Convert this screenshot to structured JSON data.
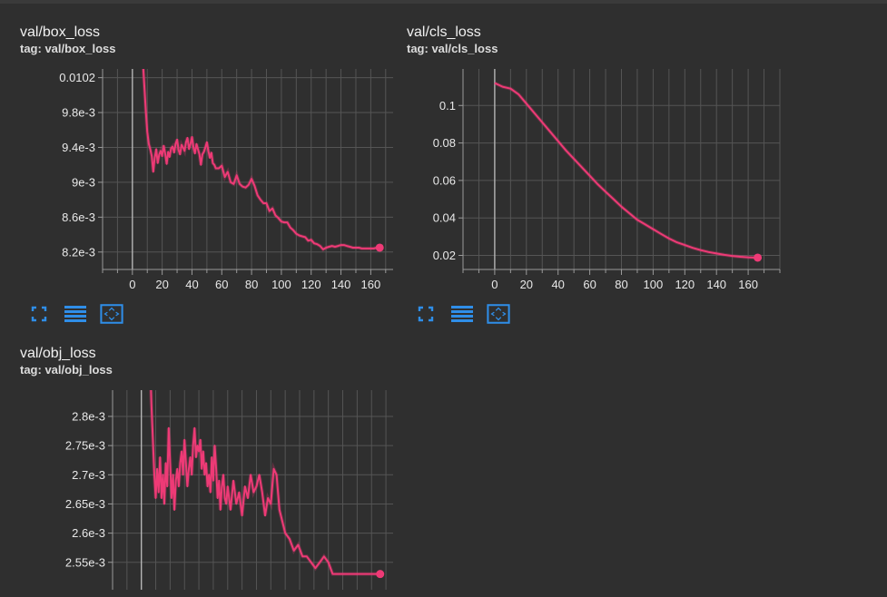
{
  "colors": {
    "series": "#ee3a76",
    "background": "#2f2f2f",
    "grid": "#555555",
    "axis": "#9a9a9a",
    "accent": "#2f8ee8"
  },
  "toolbar_icons": [
    "fullscreen-icon",
    "data-table-icon",
    "fit-domain-icon"
  ],
  "cards": [
    {
      "title": "val/box_loss",
      "tag": "tag: val/box_loss",
      "chart_data": {
        "type": "line",
        "xlim": [
          -20,
          175
        ],
        "ylim": [
          0.008,
          0.0103
        ],
        "xticks": [
          0,
          20,
          40,
          60,
          80,
          100,
          120,
          140,
          160
        ],
        "xtick_labels": [
          "0",
          "20",
          "40",
          "60",
          "80",
          "100",
          "120",
          "140",
          "160"
        ],
        "yticks": [
          0.0102,
          0.0098,
          0.0094,
          0.009,
          0.0086,
          0.0082
        ],
        "ytick_labels": [
          "0.0102",
          "9.8e-3",
          "9.4e-3",
          "9e-3",
          "8.6e-3",
          "8.2e-3"
        ],
        "grid": true,
        "series": [
          {
            "x": [
              7,
              8,
              9,
              10,
              11,
              12,
              13,
              14,
              15,
              16,
              17,
              18,
              19,
              20,
              21,
              22,
              23,
              24,
              25,
              26,
              27,
              28,
              29,
              30,
              31,
              32,
              33,
              34,
              35,
              36,
              37,
              38,
              39,
              40,
              41,
              42,
              43,
              44,
              45,
              46,
              47,
              48,
              49,
              50,
              51,
              52,
              53,
              54,
              55,
              56,
              58,
              60,
              62,
              64,
              66,
              68,
              70,
              72,
              74,
              76,
              78,
              80,
              82,
              84,
              86,
              88,
              90,
              92,
              94,
              96,
              98,
              100,
              102,
              104,
              106,
              108,
              110,
              112,
              114,
              116,
              118,
              120,
              122,
              124,
              126,
              128,
              130,
              132,
              134,
              136,
              138,
              140,
              142,
              144,
              146,
              148,
              150,
              152,
              154,
              156,
              158,
              160,
              162,
              164,
              166
            ],
            "y": [
              0.0104,
              0.01012,
              0.00982,
              0.00958,
              0.00944,
              0.00938,
              0.0093,
              0.00912,
              0.00928,
              0.00938,
              0.00922,
              0.00932,
              0.00936,
              0.0093,
              0.00942,
              0.00933,
              0.00921,
              0.00935,
              0.00929,
              0.00939,
              0.00941,
              0.00934,
              0.00944,
              0.00949,
              0.00937,
              0.00932,
              0.00943,
              0.0094,
              0.00936,
              0.00946,
              0.00951,
              0.00938,
              0.00944,
              0.00952,
              0.0094,
              0.00933,
              0.00944,
              0.00938,
              0.00932,
              0.0092,
              0.00932,
              0.00935,
              0.0094,
              0.00946,
              0.00936,
              0.00928,
              0.00934,
              0.00922,
              0.0092,
              0.00916,
              0.00916,
              0.00919,
              0.00906,
              0.00912,
              0.009,
              0.00898,
              0.00908,
              0.00898,
              0.00895,
              0.00894,
              0.00897,
              0.00904,
              0.00896,
              0.00885,
              0.0088,
              0.00876,
              0.00876,
              0.00867,
              0.0087,
              0.00862,
              0.00859,
              0.00855,
              0.00854,
              0.00854,
              0.00848,
              0.00845,
              0.00841,
              0.00839,
              0.00838,
              0.00837,
              0.00833,
              0.00834,
              0.0083,
              0.00829,
              0.00827,
              0.00823,
              0.00825,
              0.00826,
              0.00827,
              0.00826,
              0.00827,
              0.00828,
              0.00828,
              0.00827,
              0.00826,
              0.00825,
              0.00825,
              0.00825,
              0.00824,
              0.00824,
              0.00824,
              0.00824,
              0.00824,
              0.00825,
              0.00825
            ]
          }
        ]
      }
    },
    {
      "title": "val/cls_loss",
      "tag": "tag: val/cls_loss",
      "chart_data": {
        "type": "line",
        "xlim": [
          -20,
          180
        ],
        "ylim": [
          0.0125,
          0.1195
        ],
        "xticks": [
          0,
          20,
          40,
          60,
          80,
          100,
          120,
          140,
          160
        ],
        "xtick_labels": [
          "0",
          "20",
          "40",
          "60",
          "80",
          "100",
          "120",
          "140",
          "160"
        ],
        "yticks": [
          0.1,
          0.08,
          0.06,
          0.04,
          0.02
        ],
        "ytick_labels": [
          "0.1",
          "0.08",
          "0.06",
          "0.04",
          "0.02"
        ],
        "grid": true,
        "series": [
          {
            "x": [
              0,
              5,
              10,
              15,
              20,
              25,
              30,
              35,
              40,
              45,
              50,
              55,
              60,
              65,
              70,
              75,
              80,
              85,
              90,
              95,
              100,
              105,
              110,
              115,
              120,
              125,
              130,
              135,
              140,
              145,
              150,
              155,
              160,
              166
            ],
            "y": [
              0.112,
              0.11,
              0.109,
              0.106,
              0.101,
              0.096,
              0.091,
              0.086,
              0.081,
              0.076,
              0.0715,
              0.067,
              0.0625,
              0.058,
              0.054,
              0.05,
              0.046,
              0.0425,
              0.039,
              0.0365,
              0.034,
              0.0315,
              0.029,
              0.027,
              0.0255,
              0.024,
              0.0228,
              0.0218,
              0.021,
              0.0203,
              0.0197,
              0.0193,
              0.019,
              0.0188
            ]
          }
        ]
      }
    },
    {
      "title": "val/obj_loss",
      "tag": "tag: val/obj_loss",
      "chart_data": {
        "type": "line",
        "xlim": [
          -20,
          175
        ],
        "ylim": [
          0.002503,
          0.002845
        ],
        "xticks": [],
        "xtick_labels": [],
        "yticks": [
          0.0028,
          0.00275,
          0.0027,
          0.00265,
          0.0026,
          0.00255
        ],
        "ytick_labels": [
          "2.8e-3",
          "2.75e-3",
          "2.7e-3",
          "2.65e-3",
          "2.6e-3",
          "2.55e-3"
        ],
        "grid": true,
        "series": [
          {
            "x": [
              6,
              7,
              8,
              9,
              10,
              11,
              12,
              13,
              14,
              15,
              16,
              17,
              18,
              19,
              20,
              21,
              22,
              23,
              24,
              25,
              26,
              27,
              28,
              29,
              30,
              31,
              32,
              33,
              34,
              35,
              36,
              37,
              38,
              39,
              40,
              41,
              42,
              43,
              44,
              45,
              46,
              47,
              48,
              49,
              50,
              51,
              52,
              53,
              54,
              55,
              56,
              57,
              58,
              59,
              60,
              62,
              64,
              66,
              68,
              70,
              72,
              74,
              76,
              78,
              80,
              82,
              84,
              86,
              88,
              90,
              92,
              94,
              96,
              98,
              100,
              103,
              106,
              109,
              112,
              115,
              118,
              121,
              124,
              127,
              130,
              133,
              136,
              139,
              142,
              145,
              148,
              151,
              154,
              157,
              160,
              163,
              166
            ],
            "y": [
              0.0029,
              0.00282,
              0.00276,
              0.0027,
              0.00266,
              0.00271,
              0.00267,
              0.00273,
              0.00266,
              0.0027,
              0.00265,
              0.00272,
              0.00268,
              0.00278,
              0.00272,
              0.00266,
              0.0027,
              0.00264,
              0.00269,
              0.00271,
              0.00268,
              0.00272,
              0.00274,
              0.0027,
              0.00276,
              0.00272,
              0.00268,
              0.00271,
              0.00273,
              0.0027,
              0.00275,
              0.00278,
              0.00273,
              0.00275,
              0.00274,
              0.00276,
              0.00271,
              0.00274,
              0.0027,
              0.00272,
              0.00268,
              0.0027,
              0.00267,
              0.00273,
              0.00269,
              0.00275,
              0.00271,
              0.00266,
              0.00269,
              0.00264,
              0.00268,
              0.0027,
              0.00266,
              0.00265,
              0.00268,
              0.00264,
              0.00269,
              0.00265,
              0.00267,
              0.00263,
              0.00268,
              0.00266,
              0.0027,
              0.00267,
              0.00268,
              0.0027,
              0.00267,
              0.00263,
              0.00266,
              0.00265,
              0.00271,
              0.0027,
              0.00264,
              0.00262,
              0.0026,
              0.00259,
              0.00257,
              0.00258,
              0.00256,
              0.00256,
              0.00255,
              0.00254,
              0.00255,
              0.00256,
              0.00255,
              0.00253,
              0.00253,
              0.00253,
              0.00253,
              0.00253,
              0.00253,
              0.00253,
              0.00253,
              0.00253,
              0.00253,
              0.00253,
              0.00253
            ]
          }
        ]
      }
    }
  ]
}
